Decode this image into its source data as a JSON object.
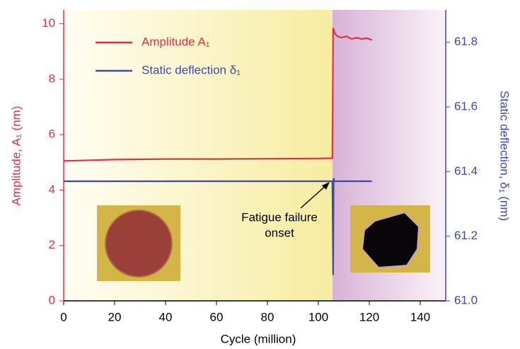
{
  "chart_data": {
    "type": "line",
    "xlabel": "Cycle (million)",
    "ylabel": "Amplitude, A₁ (nm)",
    "y2label": "Static deflection, δ₁ (nm)",
    "annotation": [
      "Fatigue failure",
      "onset"
    ],
    "xlim": [
      0,
      150
    ],
    "xticks": [
      0,
      20,
      40,
      60,
      80,
      100,
      120,
      140
    ],
    "ylim": [
      0,
      10.5
    ],
    "yticks": [
      0,
      2,
      4,
      6,
      8,
      10
    ],
    "y2lim": [
      61.0,
      61.9
    ],
    "y2ticks": [
      {
        "value": 61,
        "label": "61.0"
      },
      61.2,
      61.4,
      61.6,
      61.8
    ],
    "series": [
      {
        "name": "Amplitude A₁",
        "color": "#e0314a",
        "axis": "y",
        "x": [
          0,
          20,
          40,
          60,
          80,
          100,
          105.5,
          105.8,
          106.5,
          107.5,
          109,
          111,
          113,
          115,
          117,
          119,
          121
        ],
        "values": [
          5.05,
          5.1,
          5.12,
          5.12,
          5.13,
          5.14,
          5.15,
          9.85,
          9.65,
          9.55,
          9.5,
          9.55,
          9.45,
          9.5,
          9.45,
          9.48,
          9.42
        ]
      },
      {
        "name": "Static deflection δ₁",
        "color": "#3c4aa8",
        "axis": "y2",
        "x": [
          0,
          60,
          105.5,
          105.8,
          106,
          106.2,
          121
        ],
        "values": [
          61.37,
          61.37,
          61.37,
          61.08,
          61.38,
          61.37,
          61.37
        ]
      }
    ]
  }
}
